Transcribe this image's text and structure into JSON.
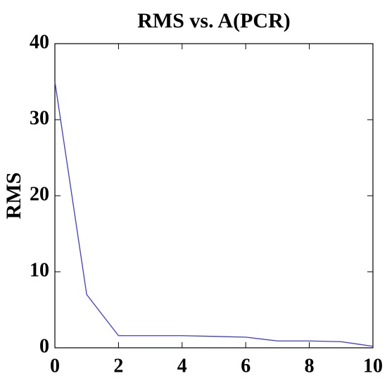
{
  "chart_data": {
    "type": "line",
    "title": "RMS vs. A(PCR)",
    "y_label": "RMS",
    "x": [
      0,
      1,
      2,
      3,
      4,
      5,
      6,
      7,
      8,
      9,
      10
    ],
    "values": [
      35,
      7,
      1.6,
      1.6,
      1.6,
      1.5,
      1.4,
      0.9,
      0.9,
      0.8,
      0.2
    ],
    "color": "#3b3bdc",
    "xlim": [
      0,
      10
    ],
    "xticks": [
      0,
      2,
      4,
      6,
      8,
      10
    ],
    "ylim": [
      0,
      40
    ],
    "yticks": [
      0,
      10,
      20,
      30,
      40
    ],
    "grid": false
  }
}
